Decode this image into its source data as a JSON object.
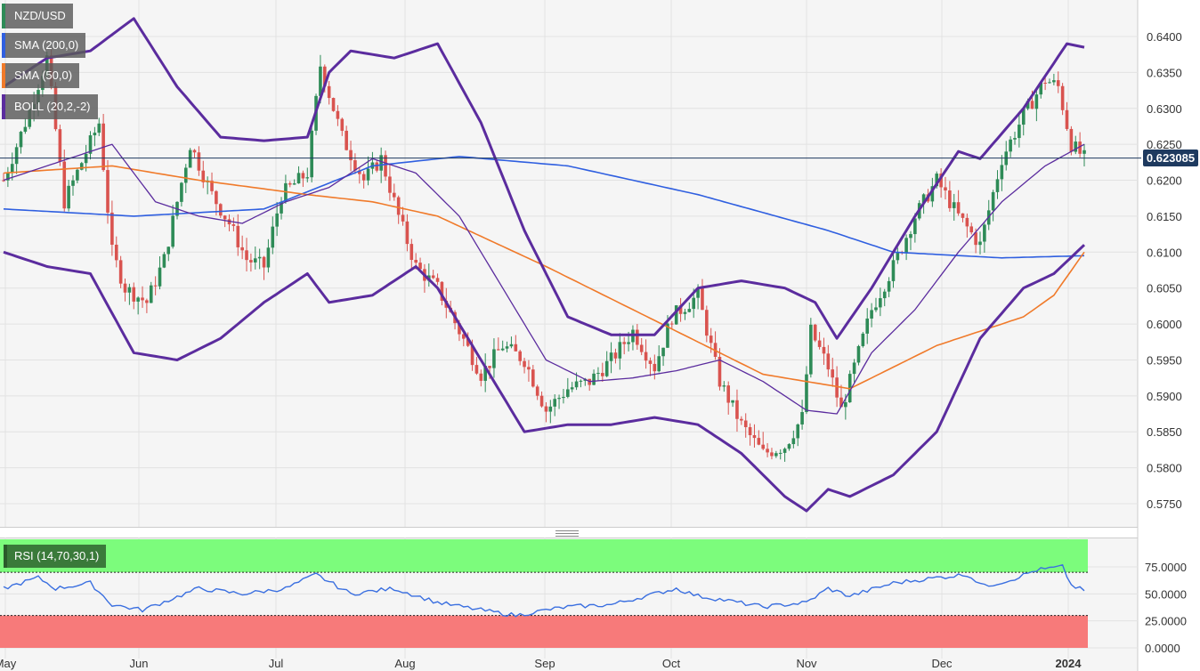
{
  "legends": {
    "pair": "NZD/USD",
    "sma200": "SMA (200,0)",
    "sma50": "SMA (50,0)",
    "boll": "BOLL (20,2,-2)",
    "rsi": "RSI (14,70,30,1)"
  },
  "colors": {
    "up": "#2e8b57",
    "down": "#d9534f",
    "sma200": "#2f5fe0",
    "sma50": "#f07a2a",
    "boll": "#5b2c9e",
    "rsi_line": "#3a6fe0",
    "overbought": "#7cfc7c",
    "oversold": "#f77a7a",
    "price_tag": "#1e3a5f"
  },
  "current_price": "0.623085",
  "chart_data": [
    {
      "type": "candlestick",
      "title": "NZD/USD",
      "x_ticks": [
        "May",
        "Jun",
        "Jul",
        "Aug",
        "Sep",
        "Oct",
        "Nov",
        "Dec",
        "2024"
      ],
      "y_ticks": [
        "0.6400",
        "0.6350",
        "0.6300",
        "0.6250",
        "0.6200",
        "0.6150",
        "0.6100",
        "0.6050",
        "0.6000",
        "0.5950",
        "0.5900",
        "0.5850",
        "0.5800",
        "0.5750"
      ],
      "ylim": [
        0.572,
        0.645
      ],
      "grid": true,
      "close_key_points": [
        [
          0,
          0.62
        ],
        [
          5,
          0.628
        ],
        [
          10,
          0.637
        ],
        [
          14,
          0.617
        ],
        [
          22,
          0.628
        ],
        [
          25,
          0.61
        ],
        [
          28,
          0.605
        ],
        [
          33,
          0.603
        ],
        [
          37,
          0.609
        ],
        [
          43,
          0.625
        ],
        [
          48,
          0.618
        ],
        [
          52,
          0.614
        ],
        [
          56,
          0.609
        ],
        [
          60,
          0.608
        ],
        [
          64,
          0.618
        ],
        [
          70,
          0.621
        ],
        [
          73,
          0.636
        ],
        [
          78,
          0.626
        ],
        [
          83,
          0.62
        ],
        [
          87,
          0.623
        ],
        [
          91,
          0.615
        ],
        [
          95,
          0.608
        ],
        [
          100,
          0.605
        ],
        [
          105,
          0.599
        ],
        [
          110,
          0.593
        ],
        [
          115,
          0.597
        ],
        [
          120,
          0.595
        ],
        [
          125,
          0.588
        ],
        [
          130,
          0.591
        ],
        [
          135,
          0.592
        ],
        [
          140,
          0.595
        ],
        [
          145,
          0.599
        ],
        [
          150,
          0.594
        ],
        [
          154,
          0.601
        ],
        [
          160,
          0.604
        ],
        [
          165,
          0.592
        ],
        [
          170,
          0.586
        ],
        [
          175,
          0.582
        ],
        [
          180,
          0.583
        ],
        [
          184,
          0.587
        ],
        [
          186,
          0.599
        ],
        [
          190,
          0.594
        ],
        [
          193,
          0.588
        ],
        [
          197,
          0.596
        ],
        [
          200,
          0.602
        ],
        [
          205,
          0.608
        ],
        [
          210,
          0.615
        ],
        [
          215,
          0.62
        ],
        [
          220,
          0.615
        ],
        [
          225,
          0.611
        ],
        [
          230,
          0.623
        ],
        [
          235,
          0.629
        ],
        [
          240,
          0.634
        ],
        [
          243,
          0.633
        ],
        [
          246,
          0.625
        ],
        [
          249,
          0.6231
        ]
      ],
      "series": [
        {
          "name": "SMA (200,0)",
          "key_points": [
            [
              0,
              0.616
            ],
            [
              30,
              0.615
            ],
            [
              60,
              0.616
            ],
            [
              85,
              0.622
            ],
            [
              105,
              0.6233
            ],
            [
              130,
              0.622
            ],
            [
              160,
              0.618
            ],
            [
              190,
              0.613
            ],
            [
              205,
              0.61
            ],
            [
              230,
              0.6092
            ],
            [
              249,
              0.6095
            ]
          ]
        },
        {
          "name": "SMA (50,0)",
          "key_points": [
            [
              0,
              0.621
            ],
            [
              25,
              0.622
            ],
            [
              45,
              0.62
            ],
            [
              70,
              0.618
            ],
            [
              85,
              0.617
            ],
            [
              100,
              0.615
            ],
            [
              125,
              0.608
            ],
            [
              155,
              0.599
            ],
            [
              175,
              0.593
            ],
            [
              195,
              0.591
            ],
            [
              215,
              0.597
            ],
            [
              235,
              0.601
            ],
            [
              242,
              0.604
            ],
            [
              249,
              0.61
            ]
          ]
        },
        {
          "name": "BOLL upper",
          "key_points": [
            [
              0,
              0.633
            ],
            [
              10,
              0.637
            ],
            [
              20,
              0.638
            ],
            [
              30,
              0.6425
            ],
            [
              40,
              0.633
            ],
            [
              50,
              0.626
            ],
            [
              60,
              0.6255
            ],
            [
              70,
              0.626
            ],
            [
              75,
              0.635
            ],
            [
              80,
              0.638
            ],
            [
              90,
              0.637
            ],
            [
              100,
              0.639
            ],
            [
              110,
              0.628
            ],
            [
              120,
              0.613
            ],
            [
              130,
              0.601
            ],
            [
              140,
              0.5985
            ],
            [
              150,
              0.5985
            ],
            [
              160,
              0.605
            ],
            [
              170,
              0.606
            ],
            [
              180,
              0.605
            ],
            [
              187,
              0.603
            ],
            [
              192,
              0.598
            ],
            [
              200,
              0.605
            ],
            [
              210,
              0.615
            ],
            [
              220,
              0.624
            ],
            [
              225,
              0.623
            ],
            [
              235,
              0.63
            ],
            [
              245,
              0.639
            ],
            [
              249,
              0.6385
            ]
          ]
        },
        {
          "name": "BOLL mid",
          "key_points": [
            [
              0,
              0.62
            ],
            [
              15,
              0.623
            ],
            [
              25,
              0.625
            ],
            [
              35,
              0.617
            ],
            [
              45,
              0.615
            ],
            [
              55,
              0.614
            ],
            [
              65,
              0.617
            ],
            [
              75,
              0.619
            ],
            [
              85,
              0.623
            ],
            [
              95,
              0.621
            ],
            [
              105,
              0.615
            ],
            [
              115,
              0.605
            ],
            [
              125,
              0.595
            ],
            [
              135,
              0.592
            ],
            [
              145,
              0.5925
            ],
            [
              155,
              0.5935
            ],
            [
              165,
              0.595
            ],
            [
              175,
              0.592
            ],
            [
              185,
              0.588
            ],
            [
              192,
              0.5875
            ],
            [
              200,
              0.596
            ],
            [
              210,
              0.602
            ],
            [
              220,
              0.61
            ],
            [
              230,
              0.617
            ],
            [
              240,
              0.622
            ],
            [
              249,
              0.625
            ]
          ]
        },
        {
          "name": "BOLL lower",
          "key_points": [
            [
              0,
              0.61
            ],
            [
              10,
              0.608
            ],
            [
              20,
              0.607
            ],
            [
              30,
              0.596
            ],
            [
              40,
              0.595
            ],
            [
              50,
              0.598
            ],
            [
              60,
              0.603
            ],
            [
              70,
              0.607
            ],
            [
              75,
              0.603
            ],
            [
              85,
              0.604
            ],
            [
              95,
              0.608
            ],
            [
              100,
              0.605
            ],
            [
              110,
              0.595
            ],
            [
              120,
              0.585
            ],
            [
              130,
              0.586
            ],
            [
              140,
              0.586
            ],
            [
              150,
              0.587
            ],
            [
              160,
              0.586
            ],
            [
              170,
              0.582
            ],
            [
              180,
              0.576
            ],
            [
              185,
              0.574
            ],
            [
              190,
              0.577
            ],
            [
              195,
              0.576
            ],
            [
              205,
              0.579
            ],
            [
              215,
              0.585
            ],
            [
              225,
              0.598
            ],
            [
              235,
              0.605
            ],
            [
              242,
              0.607
            ],
            [
              249,
              0.611
            ]
          ]
        }
      ]
    },
    {
      "type": "line",
      "title": "RSI (14,70,30,1)",
      "y_ticks": [
        "75.0000",
        "50.0000",
        "25.0000",
        "0.0000"
      ],
      "ylim": [
        0,
        100
      ],
      "overbought": 70,
      "oversold": 30,
      "series": [
        {
          "name": "RSI",
          "key_points": [
            [
              0,
              55
            ],
            [
              8,
              65
            ],
            [
              12,
              55
            ],
            [
              20,
              60
            ],
            [
              25,
              40
            ],
            [
              32,
              35
            ],
            [
              45,
              55
            ],
            [
              55,
              50
            ],
            [
              65,
              55
            ],
            [
              72,
              68
            ],
            [
              80,
              50
            ],
            [
              90,
              55
            ],
            [
              100,
              42
            ],
            [
              110,
              35
            ],
            [
              118,
              30
            ],
            [
              125,
              35
            ],
            [
              130,
              38
            ],
            [
              140,
              40
            ],
            [
              150,
              50
            ],
            [
              155,
              55
            ],
            [
              160,
              48
            ],
            [
              165,
              45
            ],
            [
              175,
              38
            ],
            [
              185,
              42
            ],
            [
              190,
              55
            ],
            [
              195,
              48
            ],
            [
              205,
              60
            ],
            [
              215,
              65
            ],
            [
              222,
              68
            ],
            [
              226,
              57
            ],
            [
              232,
              63
            ],
            [
              238,
              72
            ],
            [
              244,
              75
            ],
            [
              246,
              58
            ],
            [
              249,
              53
            ]
          ]
        }
      ]
    }
  ]
}
